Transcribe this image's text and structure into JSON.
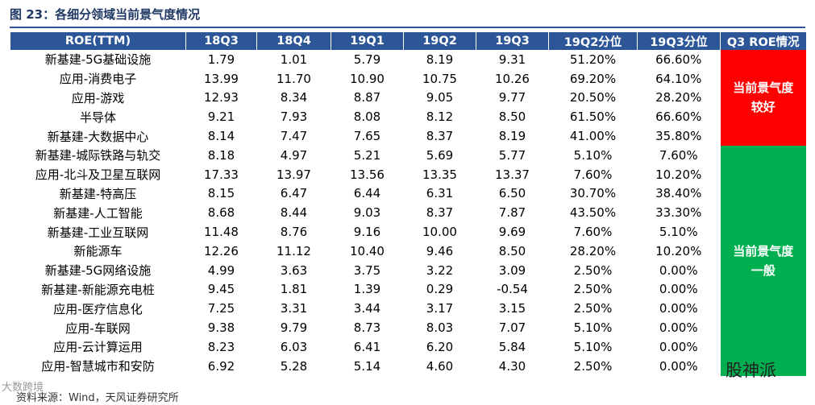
{
  "header": {
    "title": "图 23：各细分领域当前景气度情况"
  },
  "table": {
    "columns": [
      "ROE(TTM)",
      "18Q3",
      "18Q4",
      "19Q1",
      "19Q2",
      "19Q3",
      "19Q2分位",
      "19Q3分位",
      "Q3 ROE情况"
    ],
    "rows": [
      [
        "新基建-5G基础设施",
        "1.79",
        "1.01",
        "5.79",
        "8.19",
        "9.31",
        "51.20%",
        "66.60%"
      ],
      [
        "应用-消费电子",
        "13.99",
        "11.70",
        "10.90",
        "10.75",
        "10.26",
        "69.20%",
        "64.10%"
      ],
      [
        "应用-游戏",
        "12.93",
        "8.34",
        "8.87",
        "9.05",
        "9.77",
        "20.50%",
        "28.20%"
      ],
      [
        "半导体",
        "9.21",
        "7.93",
        "8.08",
        "8.12",
        "8.50",
        "61.50%",
        "66.60%"
      ],
      [
        "新基建-大数据中心",
        "8.14",
        "7.47",
        "7.65",
        "8.37",
        "8.19",
        "41.00%",
        "35.80%"
      ],
      [
        "新基建-城际铁路与轨交",
        "8.18",
        "4.97",
        "5.21",
        "5.69",
        "5.77",
        "5.10%",
        "7.60%"
      ],
      [
        "应用-北斗及卫星互联网",
        "17.33",
        "13.97",
        "13.56",
        "13.35",
        "13.37",
        "7.60%",
        "10.20%"
      ],
      [
        "新基建-特高压",
        "8.15",
        "6.47",
        "6.44",
        "6.31",
        "6.50",
        "30.70%",
        "38.40%"
      ],
      [
        "新基建-人工智能",
        "8.68",
        "8.44",
        "9.03",
        "8.37",
        "7.87",
        "43.50%",
        "33.30%"
      ],
      [
        "新基建-工业互联网",
        "11.48",
        "8.76",
        "9.16",
        "10.00",
        "9.69",
        "7.60%",
        "5.10%"
      ],
      [
        "新能源车",
        "12.26",
        "11.12",
        "10.40",
        "9.46",
        "8.50",
        "28.20%",
        "10.20%"
      ],
      [
        "新基建-5G网络设施",
        "4.99",
        "3.63",
        "3.75",
        "3.22",
        "3.09",
        "2.50%",
        "0.00%"
      ],
      [
        "新基建-新能源充电桩",
        "9.45",
        "1.81",
        "1.39",
        "0.29",
        "-0.54",
        "2.50%",
        "0.00%"
      ],
      [
        "应用-医疗信息化",
        "7.25",
        "3.31",
        "3.44",
        "3.17",
        "3.15",
        "2.50%",
        "0.00%"
      ],
      [
        "应用-车联网",
        "9.38",
        "9.79",
        "8.73",
        "8.03",
        "7.07",
        "5.10%",
        "0.00%"
      ],
      [
        "应用-云计算运用",
        "8.23",
        "6.03",
        "6.41",
        "6.20",
        "5.84",
        "5.10%",
        "0.00%"
      ],
      [
        "应用-智慧城市和安防",
        "6.92",
        "5.28",
        "5.14",
        "4.60",
        "4.30",
        "2.50%",
        "0.00%"
      ]
    ],
    "status": [
      {
        "label": [
          "当前景气度",
          "较好"
        ],
        "color": "#ff0000"
      },
      {
        "label": [
          "当前景气度",
          "一般"
        ],
        "color": "#00b050"
      }
    ]
  },
  "footer": {
    "source": "资料来源：Wind，天风证券研究所"
  },
  "watermarks": [
    "股神派",
    "大数跨境"
  ]
}
